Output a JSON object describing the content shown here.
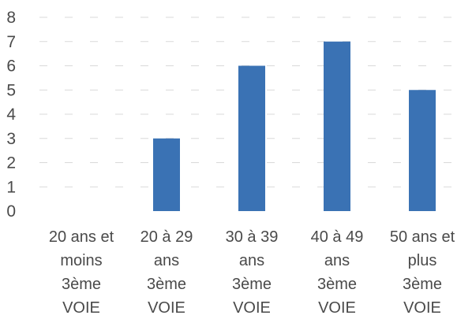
{
  "chart_data": {
    "type": "bar",
    "categories": [
      [
        "20 ans et",
        "moins",
        "3ème",
        "VOIE"
      ],
      [
        "20 à 29",
        "ans",
        "3ème",
        "VOIE"
      ],
      [
        "30 à 39",
        "ans",
        "3ème",
        "VOIE"
      ],
      [
        "40 à 49",
        "ans",
        "3ème",
        "VOIE"
      ],
      [
        "50 ans et",
        "plus",
        "3ème",
        "VOIE"
      ]
    ],
    "values": [
      0,
      3,
      6,
      7,
      5
    ],
    "ylim": [
      0,
      8
    ],
    "yticks": [
      0,
      1,
      2,
      3,
      4,
      5,
      6,
      7,
      8
    ],
    "grid": true,
    "legend": "none",
    "bar_color": "#3a72b4"
  }
}
